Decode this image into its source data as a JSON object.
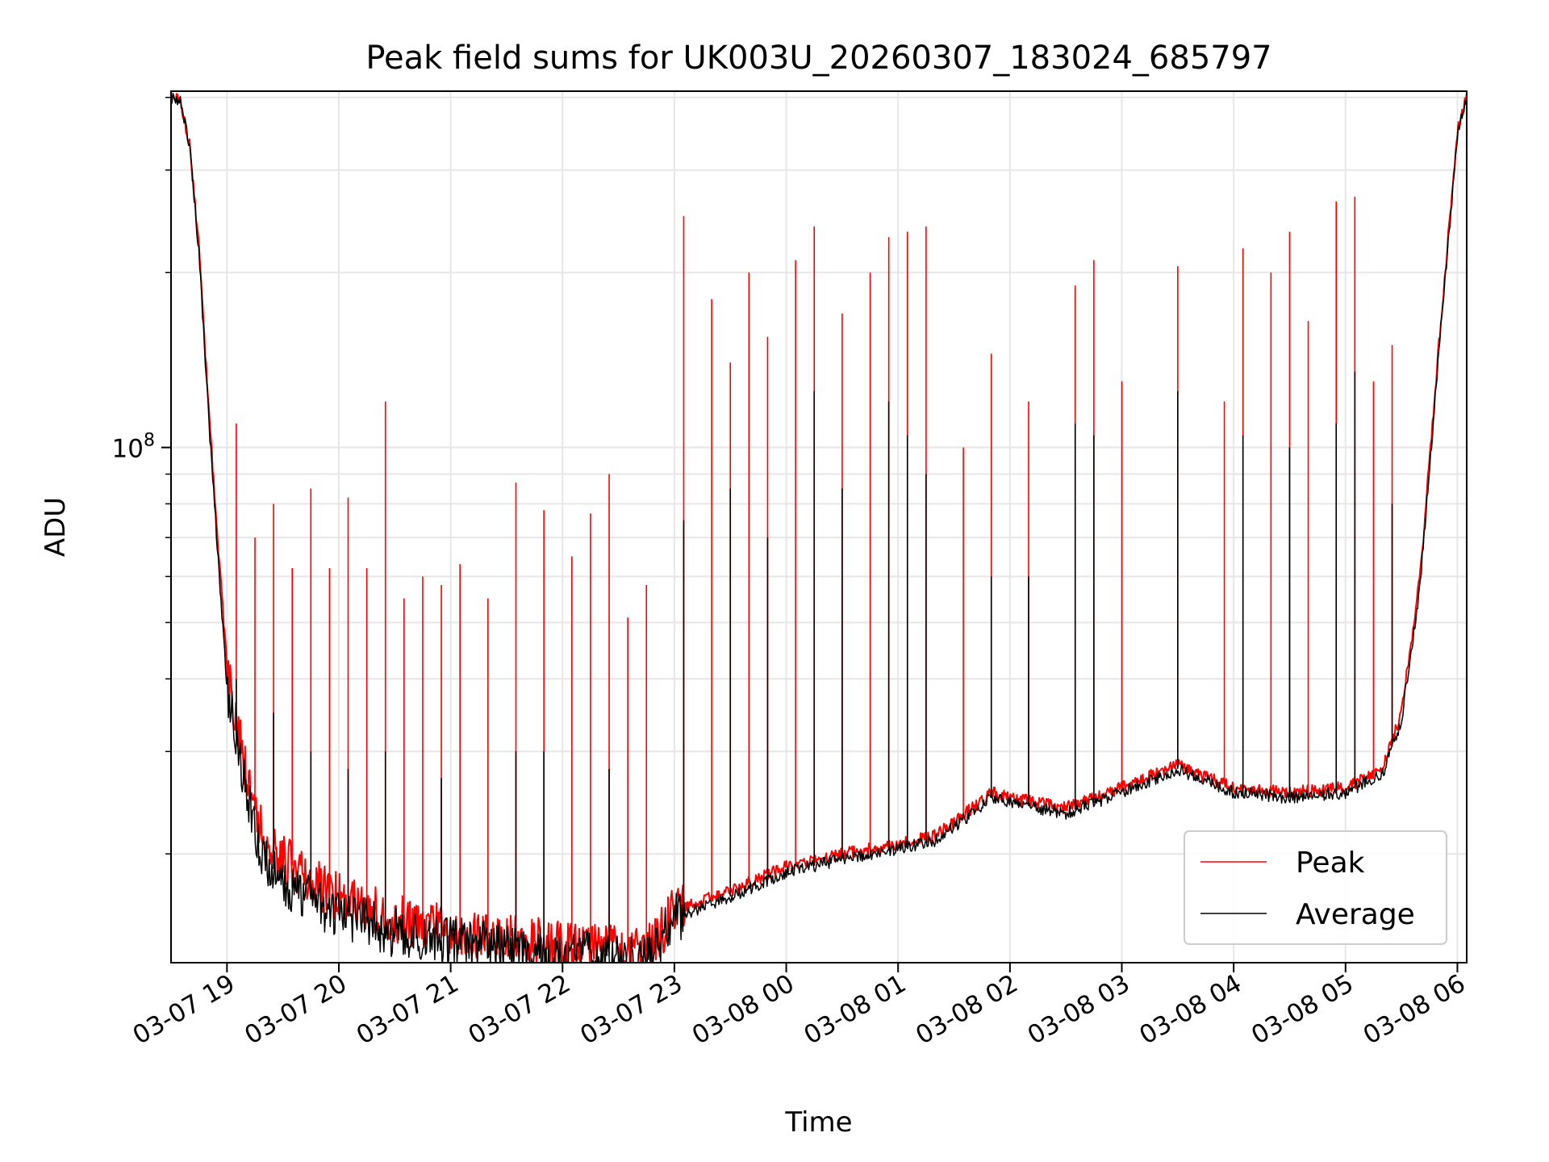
{
  "chart_data": {
    "type": "line",
    "title": "Peak field sums for UK003U_20260307_183024_685797",
    "xlabel": "Time",
    "ylabel": "ADU",
    "yscale": "log",
    "grid": true,
    "legend_position": "lower-right",
    "x_range": [
      "2026-03-07 18:30",
      "2026-03-08 06:05"
    ],
    "y_range": [
      13000000,
      410000000
    ],
    "x_ticks": [
      {
        "value": "2026-03-07 19:00",
        "label": "03-07 19"
      },
      {
        "value": "2026-03-07 20:00",
        "label": "03-07 20"
      },
      {
        "value": "2026-03-07 21:00",
        "label": "03-07 21"
      },
      {
        "value": "2026-03-07 22:00",
        "label": "03-07 22"
      },
      {
        "value": "2026-03-07 23:00",
        "label": "03-07 23"
      },
      {
        "value": "2026-03-08 00:00",
        "label": "03-08 00"
      },
      {
        "value": "2026-03-08 01:00",
        "label": "03-08 01"
      },
      {
        "value": "2026-03-08 02:00",
        "label": "03-08 02"
      },
      {
        "value": "2026-03-08 03:00",
        "label": "03-08 03"
      },
      {
        "value": "2026-03-08 04:00",
        "label": "03-08 04"
      },
      {
        "value": "2026-03-08 05:00",
        "label": "03-08 05"
      },
      {
        "value": "2026-03-08 06:00",
        "label": "03-08 06"
      }
    ],
    "y_major_ticks": [
      {
        "value": 100000000,
        "label_base": "10",
        "label_exp": "8"
      }
    ],
    "y_minor_ticks": [
      20000000,
      30000000,
      40000000,
      50000000,
      60000000,
      70000000,
      80000000,
      90000000,
      200000000,
      300000000,
      400000000
    ],
    "series": [
      {
        "name": "Peak",
        "color": "#ff0000",
        "baseline": [
          [
            "2026-03-07 18:30",
            400000000
          ],
          [
            "2026-03-07 18:35",
            395000000
          ],
          [
            "2026-03-07 18:40",
            330000000
          ],
          [
            "2026-03-07 18:45",
            220000000
          ],
          [
            "2026-03-07 18:50",
            120000000
          ],
          [
            "2026-03-07 18:55",
            70000000
          ],
          [
            "2026-03-07 19:00",
            42000000
          ],
          [
            "2026-03-07 19:10",
            28000000
          ],
          [
            "2026-03-07 19:20",
            21000000
          ],
          [
            "2026-03-07 19:40",
            18500000
          ],
          [
            "2026-03-07 20:00",
            17000000
          ],
          [
            "2026-03-07 20:30",
            15500000
          ],
          [
            "2026-03-07 21:00",
            14800000
          ],
          [
            "2026-03-07 21:30",
            14300000
          ],
          [
            "2026-03-07 22:00",
            14000000
          ],
          [
            "2026-03-07 22:30",
            13700000
          ],
          [
            "2026-03-07 22:45",
            13600000
          ],
          [
            "2026-03-07 23:00",
            16000000
          ],
          [
            "2026-03-07 23:30",
            17300000
          ],
          [
            "2026-03-08 00:00",
            19000000
          ],
          [
            "2026-03-08 00:30",
            20000000
          ],
          [
            "2026-03-08 01:00",
            20800000
          ],
          [
            "2026-03-08 01:20",
            21500000
          ],
          [
            "2026-03-08 01:40",
            24000000
          ],
          [
            "2026-03-08 01:50",
            25500000
          ],
          [
            "2026-03-08 02:00",
            25000000
          ],
          [
            "2026-03-08 02:30",
            24000000
          ],
          [
            "2026-03-08 03:00",
            26000000
          ],
          [
            "2026-03-08 03:30",
            28500000
          ],
          [
            "2026-03-08 04:00",
            26000000
          ],
          [
            "2026-03-08 04:30",
            25500000
          ],
          [
            "2026-03-08 05:00",
            26000000
          ],
          [
            "2026-03-08 05:20",
            28000000
          ],
          [
            "2026-03-08 05:30",
            35000000
          ],
          [
            "2026-03-08 05:40",
            60000000
          ],
          [
            "2026-03-08 05:50",
            150000000
          ],
          [
            "2026-03-08 06:00",
            350000000
          ],
          [
            "2026-03-08 06:05",
            405000000
          ]
        ],
        "spikes": [
          [
            "2026-03-07 19:05",
            110000000
          ],
          [
            "2026-03-07 19:15",
            70000000
          ],
          [
            "2026-03-07 19:25",
            80000000
          ],
          [
            "2026-03-07 19:35",
            62000000
          ],
          [
            "2026-03-07 19:45",
            85000000
          ],
          [
            "2026-03-07 19:55",
            62000000
          ],
          [
            "2026-03-07 20:05",
            82000000
          ],
          [
            "2026-03-07 20:15",
            62000000
          ],
          [
            "2026-03-07 20:25",
            120000000
          ],
          [
            "2026-03-07 20:35",
            55000000
          ],
          [
            "2026-03-07 20:45",
            60000000
          ],
          [
            "2026-03-07 20:55",
            58000000
          ],
          [
            "2026-03-07 21:05",
            63000000
          ],
          [
            "2026-03-07 21:20",
            55000000
          ],
          [
            "2026-03-07 21:35",
            87000000
          ],
          [
            "2026-03-07 21:50",
            78000000
          ],
          [
            "2026-03-07 22:05",
            65000000
          ],
          [
            "2026-03-07 22:15",
            77000000
          ],
          [
            "2026-03-07 22:25",
            90000000
          ],
          [
            "2026-03-07 22:35",
            51000000
          ],
          [
            "2026-03-07 22:45",
            58000000
          ],
          [
            "2026-03-07 23:05",
            250000000
          ],
          [
            "2026-03-07 23:20",
            180000000
          ],
          [
            "2026-03-07 23:30",
            140000000
          ],
          [
            "2026-03-07 23:40",
            200000000
          ],
          [
            "2026-03-07 23:50",
            155000000
          ],
          [
            "2026-03-08 00:05",
            210000000
          ],
          [
            "2026-03-08 00:15",
            240000000
          ],
          [
            "2026-03-08 00:30",
            170000000
          ],
          [
            "2026-03-08 00:45",
            200000000
          ],
          [
            "2026-03-08 00:55",
            230000000
          ],
          [
            "2026-03-08 01:05",
            235000000
          ],
          [
            "2026-03-08 01:15",
            240000000
          ],
          [
            "2026-03-08 01:35",
            100000000
          ],
          [
            "2026-03-08 01:50",
            145000000
          ],
          [
            "2026-03-08 02:10",
            120000000
          ],
          [
            "2026-03-08 02:35",
            190000000
          ],
          [
            "2026-03-08 02:45",
            210000000
          ],
          [
            "2026-03-08 03:00",
            130000000
          ],
          [
            "2026-03-08 03:30",
            205000000
          ],
          [
            "2026-03-08 03:55",
            120000000
          ],
          [
            "2026-03-08 04:05",
            220000000
          ],
          [
            "2026-03-08 04:20",
            200000000
          ],
          [
            "2026-03-08 04:30",
            235000000
          ],
          [
            "2026-03-08 04:40",
            165000000
          ],
          [
            "2026-03-08 04:55",
            265000000
          ],
          [
            "2026-03-08 05:05",
            270000000
          ],
          [
            "2026-03-08 05:15",
            130000000
          ],
          [
            "2026-03-08 05:25",
            150000000
          ]
        ]
      },
      {
        "name": "Average",
        "color": "#000000",
        "baseline": [
          [
            "2026-03-07 18:30",
            400000000
          ],
          [
            "2026-03-07 18:35",
            395000000
          ],
          [
            "2026-03-07 18:40",
            330000000
          ],
          [
            "2026-03-07 18:45",
            215000000
          ],
          [
            "2026-03-07 18:50",
            115000000
          ],
          [
            "2026-03-07 18:55",
            66000000
          ],
          [
            "2026-03-07 19:00",
            39000000
          ],
          [
            "2026-03-07 19:10",
            26000000
          ],
          [
            "2026-03-07 19:20",
            19500000
          ],
          [
            "2026-03-07 19:40",
            17000000
          ],
          [
            "2026-03-07 20:00",
            15800000
          ],
          [
            "2026-03-07 20:30",
            14700000
          ],
          [
            "2026-03-07 21:00",
            14200000
          ],
          [
            "2026-03-07 21:30",
            13800000
          ],
          [
            "2026-03-07 22:00",
            13500000
          ],
          [
            "2026-03-07 22:30",
            13300000
          ],
          [
            "2026-03-07 22:45",
            13200000
          ],
          [
            "2026-03-07 23:00",
            15500000
          ],
          [
            "2026-03-07 23:30",
            16900000
          ],
          [
            "2026-03-08 00:00",
            18600000
          ],
          [
            "2026-03-08 00:30",
            19600000
          ],
          [
            "2026-03-08 01:00",
            20400000
          ],
          [
            "2026-03-08 01:20",
            21100000
          ],
          [
            "2026-03-08 01:40",
            23500000
          ],
          [
            "2026-03-08 01:50",
            25000000
          ],
          [
            "2026-03-08 02:00",
            24500000
          ],
          [
            "2026-03-08 02:30",
            23500000
          ],
          [
            "2026-03-08 03:00",
            25500000
          ],
          [
            "2026-03-08 03:30",
            28000000
          ],
          [
            "2026-03-08 04:00",
            25500000
          ],
          [
            "2026-03-08 04:30",
            25000000
          ],
          [
            "2026-03-08 05:00",
            25500000
          ],
          [
            "2026-03-08 05:20",
            27500000
          ],
          [
            "2026-03-08 05:30",
            34000000
          ],
          [
            "2026-03-08 05:40",
            58000000
          ],
          [
            "2026-03-08 05:50",
            145000000
          ],
          [
            "2026-03-08 06:00",
            345000000
          ],
          [
            "2026-03-08 06:05",
            405000000
          ]
        ],
        "spikes": [
          [
            "2026-03-07 19:05",
            40000000
          ],
          [
            "2026-03-07 19:25",
            35000000
          ],
          [
            "2026-03-07 19:45",
            30000000
          ],
          [
            "2026-03-07 20:05",
            28000000
          ],
          [
            "2026-03-07 20:25",
            30000000
          ],
          [
            "2026-03-07 20:55",
            27000000
          ],
          [
            "2026-03-07 21:35",
            30000000
          ],
          [
            "2026-03-07 21:50",
            30000000
          ],
          [
            "2026-03-07 22:25",
            28000000
          ],
          [
            "2026-03-07 23:05",
            75000000
          ],
          [
            "2026-03-07 23:30",
            85000000
          ],
          [
            "2026-03-07 23:50",
            70000000
          ],
          [
            "2026-03-08 00:15",
            125000000
          ],
          [
            "2026-03-08 00:30",
            85000000
          ],
          [
            "2026-03-08 00:55",
            120000000
          ],
          [
            "2026-03-08 01:05",
            105000000
          ],
          [
            "2026-03-08 01:15",
            90000000
          ],
          [
            "2026-03-08 01:50",
            60000000
          ],
          [
            "2026-03-08 02:10",
            60000000
          ],
          [
            "2026-03-08 02:35",
            110000000
          ],
          [
            "2026-03-08 02:45",
            105000000
          ],
          [
            "2026-03-08 03:30",
            125000000
          ],
          [
            "2026-03-08 04:05",
            105000000
          ],
          [
            "2026-03-08 04:30",
            100000000
          ],
          [
            "2026-03-08 04:55",
            110000000
          ],
          [
            "2026-03-08 05:05",
            135000000
          ],
          [
            "2026-03-08 05:25",
            80000000
          ]
        ]
      }
    ]
  }
}
